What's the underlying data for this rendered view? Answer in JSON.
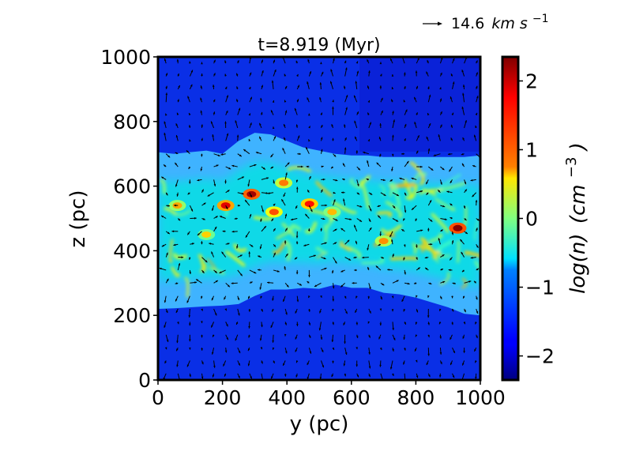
{
  "chart_data": {
    "type": "heatmap",
    "title": "t=8.919 (Myr)",
    "xlabel": "y (pc)",
    "ylabel": "z (pc)",
    "xlim": [
      0,
      1000
    ],
    "ylim": [
      0,
      1000
    ],
    "x_ticks": [
      "0",
      "200",
      "400",
      "600",
      "800",
      "1000"
    ],
    "y_ticks": [
      "0",
      "200",
      "400",
      "600",
      "800",
      "1000"
    ],
    "colormap": "jet",
    "colorbar": {
      "label_main": "log(n)",
      "label_unit": "(cm",
      "label_exp": "−3",
      "label_close": ")",
      "range": [
        -2.35,
        2.35
      ],
      "ticks": [
        "−2",
        "−1",
        "0",
        "1",
        "2"
      ]
    },
    "reference_vector": {
      "label_value": "14.6",
      "label_unit": "km s",
      "label_exp": "−1"
    },
    "layer_boundaries": {
      "y_pc": [
        0,
        50,
        100,
        150,
        200,
        250,
        300,
        350,
        400,
        450,
        500,
        550,
        600,
        650,
        700,
        750,
        800,
        850,
        900,
        950,
        1000
      ],
      "upper_edge_z_pc": [
        705,
        700,
        705,
        710,
        700,
        740,
        765,
        760,
        740,
        720,
        710,
        700,
        695,
        695,
        690,
        690,
        690,
        690,
        690,
        690,
        695
      ],
      "lower_edge_z_pc": [
        220,
        222,
        225,
        228,
        230,
        235,
        260,
        280,
        280,
        285,
        282,
        295,
        285,
        285,
        270,
        265,
        255,
        240,
        225,
        205,
        200
      ]
    },
    "dense_clumps": [
      {
        "y": 210,
        "z": 540,
        "value": 1.9
      },
      {
        "y": 290,
        "z": 575,
        "value": 2.2
      },
      {
        "y": 360,
        "z": 520,
        "value": 1.4
      },
      {
        "y": 470,
        "z": 545,
        "value": 1.7
      },
      {
        "y": 60,
        "z": 540,
        "value": 1.0
      },
      {
        "y": 700,
        "z": 430,
        "value": 1.1
      },
      {
        "y": 930,
        "z": 470,
        "value": 2.3
      },
      {
        "y": 540,
        "z": 520,
        "value": 0.9
      },
      {
        "y": 390,
        "z": 610,
        "value": 1.2
      },
      {
        "y": 150,
        "z": 450,
        "value": 0.8
      }
    ]
  }
}
